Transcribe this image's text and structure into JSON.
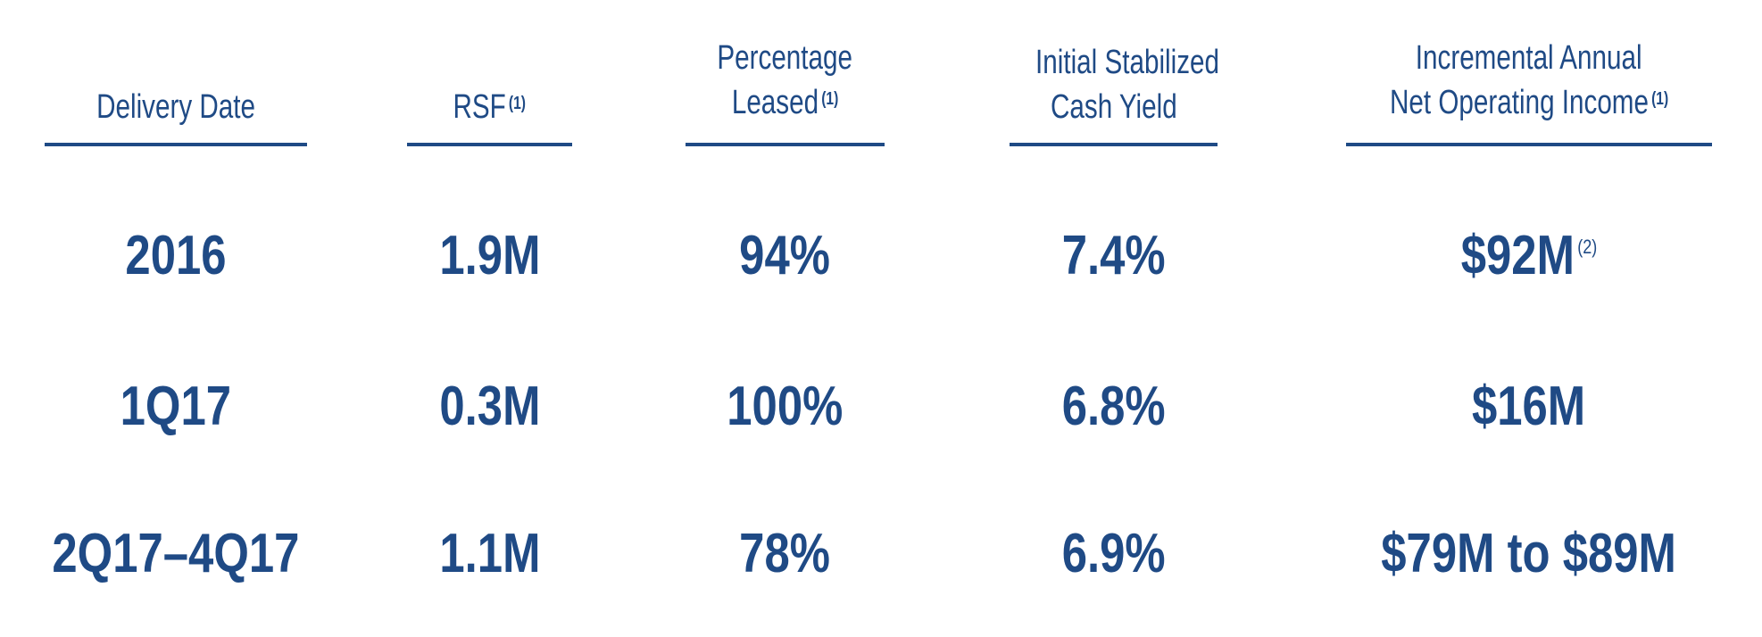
{
  "columns": [
    {
      "header_lines": [
        "",
        "Delivery Date"
      ],
      "footnote": ""
    },
    {
      "header_lines": [
        "",
        "RSF"
      ],
      "footnote": "(1)"
    },
    {
      "header_lines": [
        "Percentage",
        "Leased"
      ],
      "footnote": "(1)"
    },
    {
      "header_lines": [
        "Initial Stabilized",
        "Cash Yield"
      ],
      "footnote": ""
    },
    {
      "header_lines": [
        "Incremental Annual",
        "Net Operating Income"
      ],
      "footnote": "(1)"
    }
  ],
  "rows": [
    {
      "delivery_date": "2016",
      "rsf": "1.9M",
      "leased": "94%",
      "yield": "7.4%",
      "noi": "$92M",
      "noi_footnote": "(2)"
    },
    {
      "delivery_date": "1Q17",
      "rsf": "0.3M",
      "leased": "100%",
      "yield": "6.8%",
      "noi": "$16M",
      "noi_footnote": ""
    },
    {
      "delivery_date": "2Q17–4Q17",
      "rsf": "1.1M",
      "leased": "78%",
      "yield": "6.9%",
      "noi": "$79M to $89M",
      "noi_footnote": ""
    }
  ],
  "colors": {
    "text": "#1f4a85",
    "rule": "#1f4a85"
  }
}
